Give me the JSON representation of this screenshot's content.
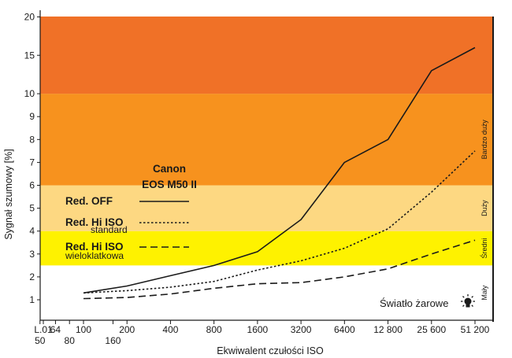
{
  "colors": {
    "zone_very_large": "#f07127",
    "zone_large": "#f7921e",
    "zone_medium_large": "#fdd882",
    "zone_medium": "#fef200",
    "zone_small": "#ffffff",
    "line": "#1a1a1a"
  },
  "chart_data": {
    "type": "line",
    "title": "Canon EOS M50 II",
    "title_lines": [
      "Canon",
      "EOS M50 II"
    ],
    "xlabel": "Ekwiwalent czułości ISO",
    "ylabel": "Sygnał szumowy [%]",
    "x_scale": "log2 (ISO stops)",
    "x_ticks": [
      {
        "label": "L.01",
        "iso": 0.01,
        "row": 0
      },
      {
        "label": "50",
        "iso": 50,
        "row": 1
      },
      {
        "label": "64",
        "iso": 64,
        "row": 0
      },
      {
        "label": "80",
        "iso": 80,
        "row": 1
      },
      {
        "label": "100",
        "iso": 100,
        "row": 0
      },
      {
        "label": "160",
        "iso": 160,
        "row": 1
      },
      {
        "label": "200",
        "iso": 200,
        "row": 0
      },
      {
        "label": "400",
        "iso": 400,
        "row": 0
      },
      {
        "label": "800",
        "iso": 800,
        "row": 0
      },
      {
        "label": "1600",
        "iso": 1600,
        "row": 0
      },
      {
        "label": "3200",
        "iso": 3200,
        "row": 0
      },
      {
        "label": "6400",
        "iso": 6400,
        "row": 0
      },
      {
        "label": "12 800",
        "iso": 12800,
        "row": 0
      },
      {
        "label": "25 600",
        "iso": 25600,
        "row": 0
      },
      {
        "label": "51 200",
        "iso": 51200,
        "row": 0
      }
    ],
    "y_ticks": [
      {
        "label": "1",
        "value": 1
      },
      {
        "label": "2",
        "value": 2
      },
      {
        "label": "3",
        "value": 3
      },
      {
        "label": "4",
        "value": 4
      },
      {
        "label": "5",
        "value": 5
      },
      {
        "label": "6",
        "value": 6
      },
      {
        "label": "7",
        "value": 7
      },
      {
        "label": "8",
        "value": 8
      },
      {
        "label": "9",
        "value": 9
      },
      {
        "label": "10",
        "value": 10
      },
      {
        "label": "15",
        "value": 15
      },
      {
        "label": "20",
        "value": 20
      }
    ],
    "ylim": [
      0.5,
      21
    ],
    "zones": [
      {
        "label": "Mały",
        "from": 0.5,
        "to": 2.5,
        "color_key": "zone_small"
      },
      {
        "label": "Średni",
        "from": 2.5,
        "to": 4.0,
        "color_key": "zone_medium"
      },
      {
        "label": "Duży",
        "from": 4.0,
        "to": 6.0,
        "color_key": "zone_medium_large"
      },
      {
        "label": "Bardzo duży",
        "from": 6.0,
        "to": 10.0,
        "color_key": "zone_large"
      },
      {
        "label": "",
        "from": 10.0,
        "to": 21,
        "color_key": "zone_very_large"
      }
    ],
    "iso": [
      100,
      200,
      400,
      800,
      1600,
      3200,
      6400,
      12800,
      25600,
      51200
    ],
    "series": [
      {
        "name": "Red. OFF",
        "subname": "",
        "style": "solid",
        "values": [
          1.3,
          1.6,
          2.05,
          2.5,
          3.1,
          4.5,
          7.0,
          8.0,
          13.0,
          16.0
        ]
      },
      {
        "name": "Red. Hi ISO",
        "subname": "standard",
        "style": "dotted",
        "values": [
          1.3,
          1.4,
          1.55,
          1.8,
          2.3,
          2.7,
          3.25,
          4.1,
          5.7,
          7.5
        ]
      },
      {
        "name": "Red. Hi ISO",
        "subname": "wieloklatkowa",
        "style": "dashed",
        "values": [
          1.05,
          1.1,
          1.25,
          1.5,
          1.7,
          1.75,
          2.0,
          2.35,
          3.0,
          3.6
        ]
      }
    ],
    "annotation": "Światło żarowe"
  }
}
